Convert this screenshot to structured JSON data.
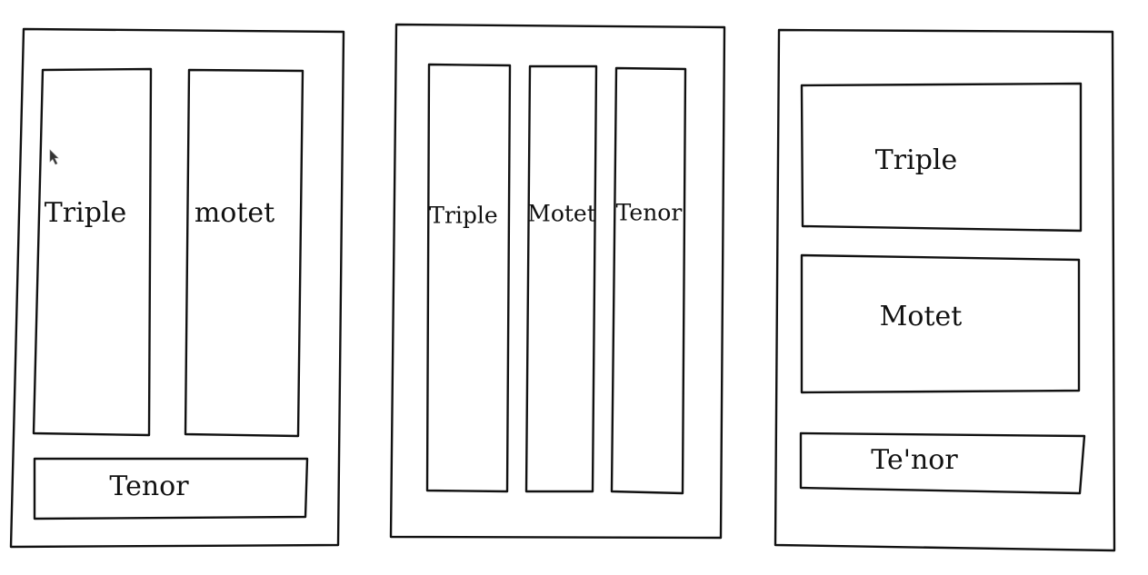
{
  "diagrams": [
    {
      "parts": [
        {
          "label": "Triple"
        },
        {
          "label": "motet"
        },
        {
          "label": "Tenor"
        }
      ]
    },
    {
      "parts": [
        {
          "label": "Triple"
        },
        {
          "label": "Motet"
        },
        {
          "label": "Tenor"
        }
      ]
    },
    {
      "parts": [
        {
          "label": "Triple"
        },
        {
          "label": "Motet"
        },
        {
          "label": "Te'nor"
        }
      ]
    }
  ],
  "icons": {
    "cursor": "mouse-pointer-icon"
  }
}
